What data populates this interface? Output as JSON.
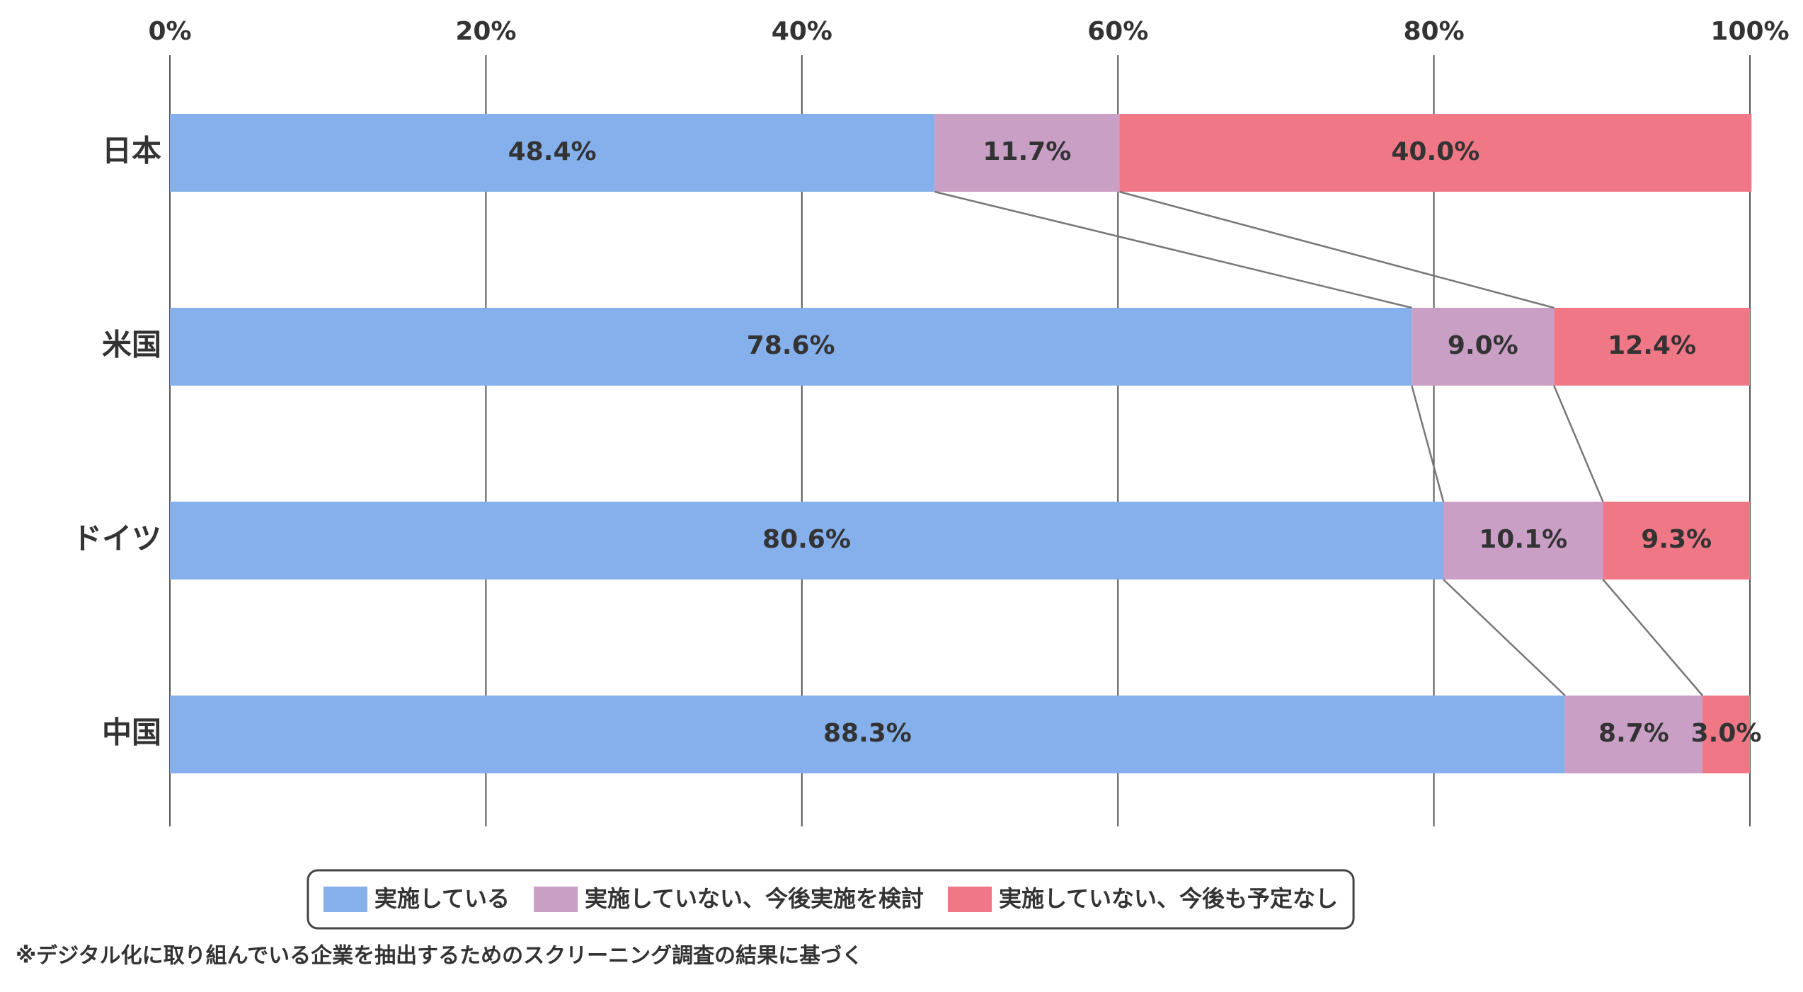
{
  "chart_data": {
    "type": "bar",
    "orientation": "horizontal",
    "stacked": true,
    "categories": [
      "日本",
      "米国",
      "ドイツ",
      "中国"
    ],
    "series": [
      {
        "name": "実施している",
        "color": "#85b0ec",
        "values": [
          48.4,
          78.6,
          80.6,
          88.3
        ],
        "value_labels": [
          "48.4%",
          "78.6%",
          "80.6%",
          "88.3%"
        ]
      },
      {
        "name": "実施していない、今後実施を検討",
        "color": "#c99fc6",
        "values": [
          11.7,
          9.0,
          10.1,
          8.7
        ],
        "value_labels": [
          "11.7%",
          "9.0%",
          "10.1%",
          "8.7%"
        ]
      },
      {
        "name": "実施していない、今後も予定なし",
        "color": "#f07886",
        "values": [
          40.0,
          12.4,
          9.3,
          3.0
        ],
        "value_labels": [
          "40.0%",
          "12.4%",
          "9.3%",
          "3.0%"
        ]
      }
    ],
    "xlim": [
      0,
      100
    ],
    "xticks": [
      {
        "value": 0,
        "label": "0%"
      },
      {
        "value": 20,
        "label": "20%"
      },
      {
        "value": 40,
        "label": "40%"
      },
      {
        "value": 60,
        "label": "60%"
      },
      {
        "value": 80,
        "label": "80%"
      },
      {
        "value": 100,
        "label": "100%"
      }
    ],
    "grid": true,
    "connector_lines": true,
    "legend": "bottom",
    "footnote": "※デジタル化に取り組んでいる企業を抽出するためのスクリーニング調査の結果に基づく"
  }
}
